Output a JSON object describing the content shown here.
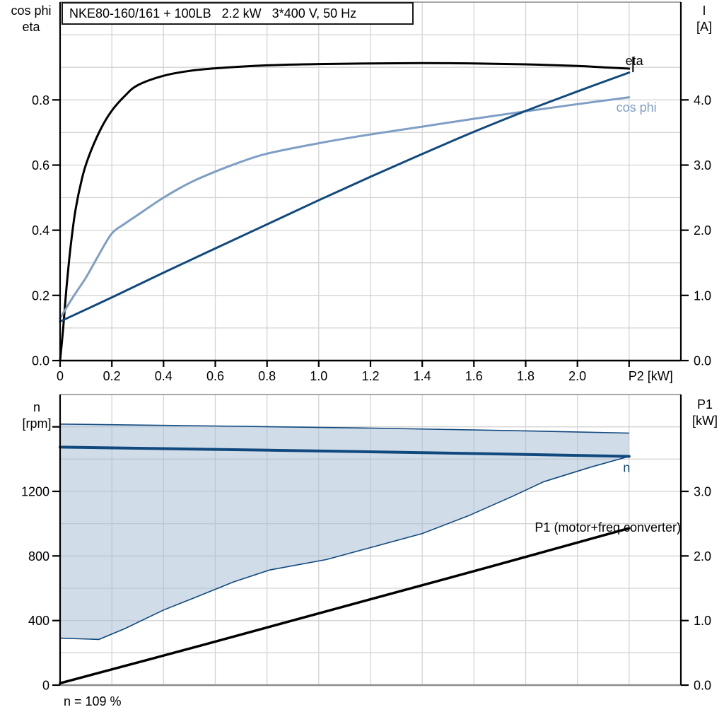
{
  "title_box": {
    "text": "NKE80-160/161 + 100LB   2.2 kW   3*400 V, 50 Hz"
  },
  "footer": {
    "speed_note": "n = 109 %"
  },
  "colors": {
    "dark_blue": "#10497E",
    "light_blue": "#7E9EC5",
    "black": "#000000",
    "gridline": "#d4d4d4",
    "frame_gray": "#8c8c8c",
    "band_fill": "rgba(164,186,211,0.5)"
  },
  "chart_data": [
    {
      "id": "eta-cosphi-current-vs-p2",
      "type": "line",
      "title": "NKE80-160/161 + 100LB   2.2 kW   3*400 V, 50 Hz",
      "x_axis": {
        "label": "P2 [kW]",
        "axis_label_at": 2.283,
        "min": 0,
        "max": 2.4,
        "grid_step": 0.2,
        "ticks": [
          {
            "v": 0,
            "t": "0"
          },
          {
            "v": 0.2,
            "t": "0.2"
          },
          {
            "v": 0.4,
            "t": "0.4"
          },
          {
            "v": 0.6,
            "t": "0.6"
          },
          {
            "v": 0.8,
            "t": "0.8"
          },
          {
            "v": 1.0,
            "t": "1.0"
          },
          {
            "v": 1.2,
            "t": "1.2"
          },
          {
            "v": 1.4,
            "t": "1.4"
          },
          {
            "v": 1.6,
            "t": "1.6"
          },
          {
            "v": 1.8,
            "t": "1.8"
          },
          {
            "v": 2.0,
            "t": "2.0"
          },
          {
            "v": 2.2,
            "t": ""
          }
        ]
      },
      "left_axis": {
        "title_lines": [
          "cos phi",
          "eta"
        ],
        "min": 0,
        "max": 1.1,
        "grid_step": 0.1,
        "ticks": [
          {
            "v": 0,
            "t": "0.0"
          },
          {
            "v": 0.2,
            "t": "0.2"
          },
          {
            "v": 0.4,
            "t": "0.4"
          },
          {
            "v": 0.6,
            "t": "0.6"
          },
          {
            "v": 0.8,
            "t": "0.8"
          }
        ]
      },
      "right_axis": {
        "title_lines": [
          "I",
          "[A]"
        ],
        "min": 0,
        "max": 5.5,
        "grid_step": 0.5,
        "ticks": [
          {
            "v": 0,
            "t": "0.0"
          },
          {
            "v": 1,
            "t": "1.0"
          },
          {
            "v": 2,
            "t": "2.0"
          },
          {
            "v": 3,
            "t": "3.0"
          },
          {
            "v": 4,
            "t": "4.0"
          }
        ]
      },
      "series": [
        {
          "name": "eta",
          "axis": "left",
          "color": "#000000",
          "width": 3,
          "points": [
            [
              0,
              0
            ],
            [
              0.012,
              0.1
            ],
            [
              0.025,
              0.225
            ],
            [
              0.04,
              0.345
            ],
            [
              0.06,
              0.465
            ],
            [
              0.09,
              0.575
            ],
            [
              0.12,
              0.645
            ],
            [
              0.16,
              0.715
            ],
            [
              0.2,
              0.767
            ],
            [
              0.25,
              0.812
            ],
            [
              0.3,
              0.845
            ],
            [
              0.4,
              0.874
            ],
            [
              0.5,
              0.889
            ],
            [
              0.6,
              0.897
            ],
            [
              0.8,
              0.906
            ],
            [
              1.0,
              0.91
            ],
            [
              1.2,
              0.912
            ],
            [
              1.4,
              0.913
            ],
            [
              1.6,
              0.912
            ],
            [
              1.8,
              0.909
            ],
            [
              2.0,
              0.904
            ],
            [
              2.1,
              0.9
            ],
            [
              2.2,
              0.896
            ]
          ]
        },
        {
          "name": "cos phi",
          "axis": "left",
          "color": "#7E9EC5",
          "width": 3,
          "points": [
            [
              0,
              0.13
            ],
            [
              0.05,
              0.195
            ],
            [
              0.1,
              0.255
            ],
            [
              0.15,
              0.325
            ],
            [
              0.2,
              0.39
            ],
            [
              0.25,
              0.42
            ],
            [
              0.3,
              0.447
            ],
            [
              0.4,
              0.5
            ],
            [
              0.5,
              0.545
            ],
            [
              0.6,
              0.58
            ],
            [
              0.7,
              0.61
            ],
            [
              0.8,
              0.635
            ],
            [
              1.0,
              0.667
            ],
            [
              1.2,
              0.694
            ],
            [
              1.4,
              0.718
            ],
            [
              1.6,
              0.742
            ],
            [
              1.8,
              0.765
            ],
            [
              2.0,
              0.787
            ],
            [
              2.2,
              0.808
            ]
          ]
        },
        {
          "name": "I",
          "axis": "right",
          "color": "#10497E",
          "width": 3,
          "points": [
            [
              0,
              0.6
            ],
            [
              0.2,
              0.97
            ],
            [
              0.4,
              1.35
            ],
            [
              0.6,
              1.72
            ],
            [
              0.8,
              2.09
            ],
            [
              1.0,
              2.46
            ],
            [
              1.2,
              2.82
            ],
            [
              1.4,
              3.17
            ],
            [
              1.6,
              3.51
            ],
            [
              1.8,
              3.83
            ],
            [
              2.0,
              4.13
            ],
            [
              2.2,
              4.42
            ]
          ]
        }
      ],
      "annotations": [
        {
          "text": "eta",
          "color": "#000000",
          "axis": "left",
          "x": 2.22,
          "y": 0.907,
          "anchor": "middle"
        },
        {
          "type": "vline",
          "color": "#000000",
          "axis": "left",
          "x": 2.215,
          "y1": 0.885,
          "y2": 0.932
        },
        {
          "text": "cos phi",
          "color": "#7E9EC5",
          "axis": "left",
          "x": 2.228,
          "y": 0.764,
          "anchor": "middle"
        }
      ]
    },
    {
      "id": "speed-and-p1-vs-p2",
      "type": "line",
      "x_axis": {
        "label": "",
        "min": 0,
        "max": 2.4,
        "grid_step": 0.2,
        "ticks": []
      },
      "left_axis": {
        "title_lines": [
          "n",
          "[rpm]"
        ],
        "min": 0,
        "max": 1800,
        "grid_step": 200,
        "ticks": [
          {
            "v": 0,
            "t": "0"
          },
          {
            "v": 400,
            "t": "400"
          },
          {
            "v": 800,
            "t": "800"
          },
          {
            "v": 1200,
            "t": "1200"
          },
          {
            "v": 1600,
            "t": ""
          }
        ]
      },
      "right_axis": {
        "title_lines": [
          "P1",
          "[kW]"
        ],
        "min": 0,
        "max": 4.5,
        "grid_step": 0.5,
        "ticks": [
          {
            "v": 0,
            "t": "0.0"
          },
          {
            "v": 1,
            "t": "1.0"
          },
          {
            "v": 2,
            "t": "2.0"
          },
          {
            "v": 3,
            "t": "3.0"
          }
        ]
      },
      "band": {
        "name": "speed-control-range",
        "fill": "rgba(164,186,211,0.5)",
        "edge_color": "#10497E",
        "edge_width": 1.6,
        "upper": [
          [
            0,
            1617
          ],
          [
            0.6,
            1605
          ],
          [
            1.2,
            1592
          ],
          [
            1.8,
            1575
          ],
          [
            2.2,
            1561
          ]
        ],
        "lower": [
          [
            0,
            291
          ],
          [
            0.15,
            283
          ],
          [
            0.25,
            350
          ],
          [
            0.4,
            465
          ],
          [
            0.53,
            548
          ],
          [
            0.67,
            639
          ],
          [
            0.81,
            713
          ],
          [
            1.03,
            778
          ],
          [
            1.2,
            852
          ],
          [
            1.4,
            939
          ],
          [
            1.58,
            1050
          ],
          [
            1.75,
            1170
          ],
          [
            1.87,
            1260
          ],
          [
            2.05,
            1350
          ],
          [
            2.2,
            1417
          ]
        ]
      },
      "series": [
        {
          "name": "n",
          "axis": "left",
          "color": "#10497E",
          "width": 4,
          "points": [
            [
              0,
              1474
            ],
            [
              0.55,
              1461
            ],
            [
              1.1,
              1448
            ],
            [
              1.65,
              1433
            ],
            [
              2.2,
              1417
            ]
          ]
        },
        {
          "name": "P1 (motor+freq.converter)",
          "axis": "right",
          "color": "#000000",
          "width": 3.5,
          "points": [
            [
              0,
              0.03
            ],
            [
              0.55,
              0.62
            ],
            [
              1.1,
              1.22
            ],
            [
              1.65,
              1.82
            ],
            [
              2.2,
              2.43
            ]
          ]
        }
      ],
      "annotations": [
        {
          "text": "n",
          "color": "#10497E",
          "axis": "left",
          "x": 2.19,
          "y": 1320,
          "anchor": "middle"
        },
        {
          "text": "P1 (motor+freq.converter)",
          "color": "#000000",
          "axis": "left",
          "x": 2.4,
          "y": 950,
          "anchor": "end"
        }
      ]
    }
  ]
}
